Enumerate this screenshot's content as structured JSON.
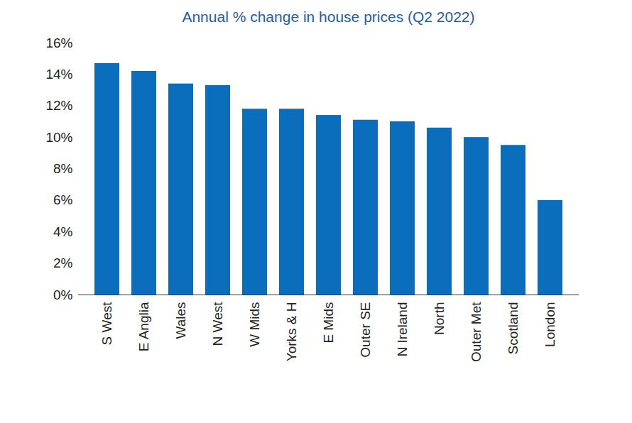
{
  "chart_data": {
    "type": "bar",
    "title": "Annual % change in house prices (Q2 2022)",
    "categories": [
      "S West",
      "E Anglia",
      "Wales",
      "N West",
      "W Mids",
      "Yorks & H",
      "E Mids",
      "Outer SE",
      "N Ireland",
      "North",
      "Outer Met",
      "Scotland",
      "London"
    ],
    "values": [
      14.7,
      14.2,
      13.4,
      13.3,
      11.8,
      11.8,
      11.4,
      11.1,
      11.0,
      10.6,
      10.0,
      9.5,
      6.0
    ],
    "color": "#0a6ebd",
    "ylim": [
      0,
      16
    ],
    "yticks": [
      {
        "value": 0,
        "label": "0%"
      },
      {
        "value": 2,
        "label": "2%"
      },
      {
        "value": 4,
        "label": "4%"
      },
      {
        "value": 6,
        "label": "6%"
      },
      {
        "value": 8,
        "label": "8%"
      },
      {
        "value": 10,
        "label": "10%"
      },
      {
        "value": 12,
        "label": "12%"
      },
      {
        "value": 14,
        "label": "14%"
      },
      {
        "value": 16,
        "label": "16%"
      }
    ],
    "grid": false
  }
}
